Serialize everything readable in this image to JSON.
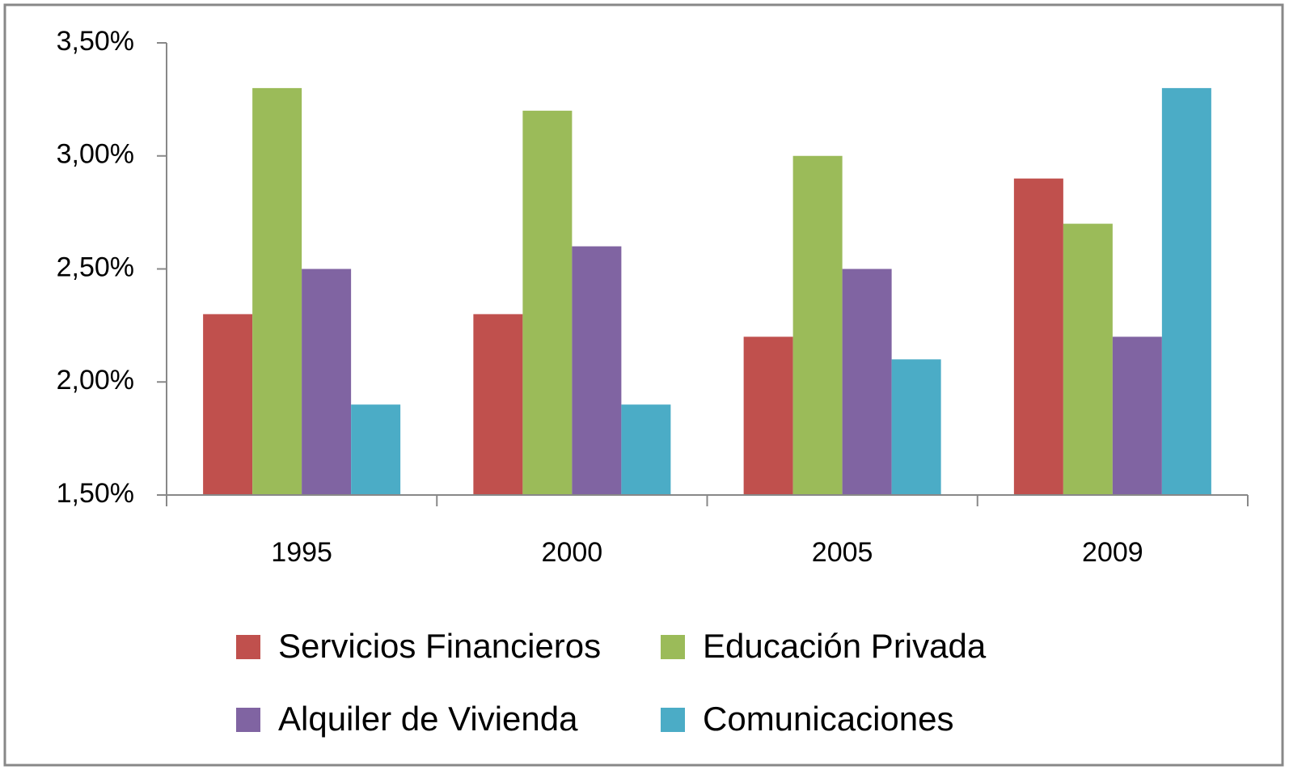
{
  "chart_data": {
    "type": "bar",
    "categories": [
      "1995",
      "2000",
      "2005",
      "2009"
    ],
    "series": [
      {
        "name": "Servicios Financieros",
        "color": "#c0504d",
        "values": [
          2.3,
          2.3,
          2.2,
          2.9
        ]
      },
      {
        "name": "Educación Privada",
        "color": "#9bbb59",
        "values": [
          3.3,
          3.2,
          3.0,
          2.7
        ]
      },
      {
        "name": "Alquiler de Vivienda",
        "color": "#8064a2",
        "values": [
          2.5,
          2.6,
          2.5,
          2.2
        ]
      },
      {
        "name": "Comunicaciones",
        "color": "#4bacc6",
        "values": [
          1.9,
          1.9,
          2.1,
          3.3
        ]
      }
    ],
    "ylim": [
      1.5,
      3.5
    ],
    "yticks": [
      {
        "value": 1.5,
        "label": "1,50%"
      },
      {
        "value": 2.0,
        "label": "2,00%"
      },
      {
        "value": 2.5,
        "label": "2,50%"
      },
      {
        "value": 3.0,
        "label": "3,00%"
      },
      {
        "value": 3.5,
        "label": "3,50%"
      }
    ],
    "legend": "bottom"
  }
}
